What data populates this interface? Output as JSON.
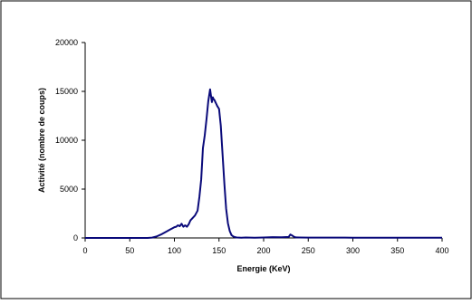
{
  "chart_data": {
    "type": "line",
    "xlabel": "Energie (KeV)",
    "ylabel": "Activité (nombre de coups)",
    "xlim": [
      0,
      400
    ],
    "ylim": [
      0,
      20000
    ],
    "x_ticks": [
      "0",
      "50",
      "100",
      "150",
      "200",
      "250",
      "300",
      "350",
      "400"
    ],
    "y_ticks": [
      "0",
      "5000",
      "10000",
      "15000",
      "20000"
    ],
    "grid": false,
    "legend": "none",
    "series": [
      {
        "color": "#0a0a7a",
        "x": [
          0,
          60,
          70,
          75,
          80,
          85,
          90,
          95,
          98,
          100,
          102,
          104,
          106,
          108,
          110,
          112,
          114,
          116,
          118,
          120,
          123,
          126,
          128,
          130,
          132,
          134,
          136,
          138,
          140,
          142,
          143,
          144,
          145,
          146,
          147,
          148,
          150,
          152,
          154,
          156,
          158,
          160,
          162,
          164,
          166,
          168,
          170,
          175,
          180,
          190,
          200,
          210,
          220,
          228,
          230,
          232,
          234,
          236,
          240,
          250,
          300,
          350,
          400
        ],
        "y": [
          0,
          0,
          0,
          40,
          150,
          350,
          600,
          850,
          1000,
          1100,
          1150,
          1300,
          1200,
          1450,
          1150,
          1300,
          1150,
          1400,
          1800,
          2000,
          2300,
          2800,
          4200,
          6000,
          9200,
          10500,
          12200,
          14000,
          15200,
          13900,
          14400,
          14200,
          14100,
          13900,
          13700,
          13500,
          13200,
          11500,
          8500,
          5500,
          3000,
          1500,
          700,
          300,
          150,
          80,
          50,
          30,
          50,
          20,
          50,
          80,
          70,
          100,
          350,
          250,
          120,
          60,
          50,
          40,
          30,
          30,
          30
        ]
      }
    ]
  }
}
